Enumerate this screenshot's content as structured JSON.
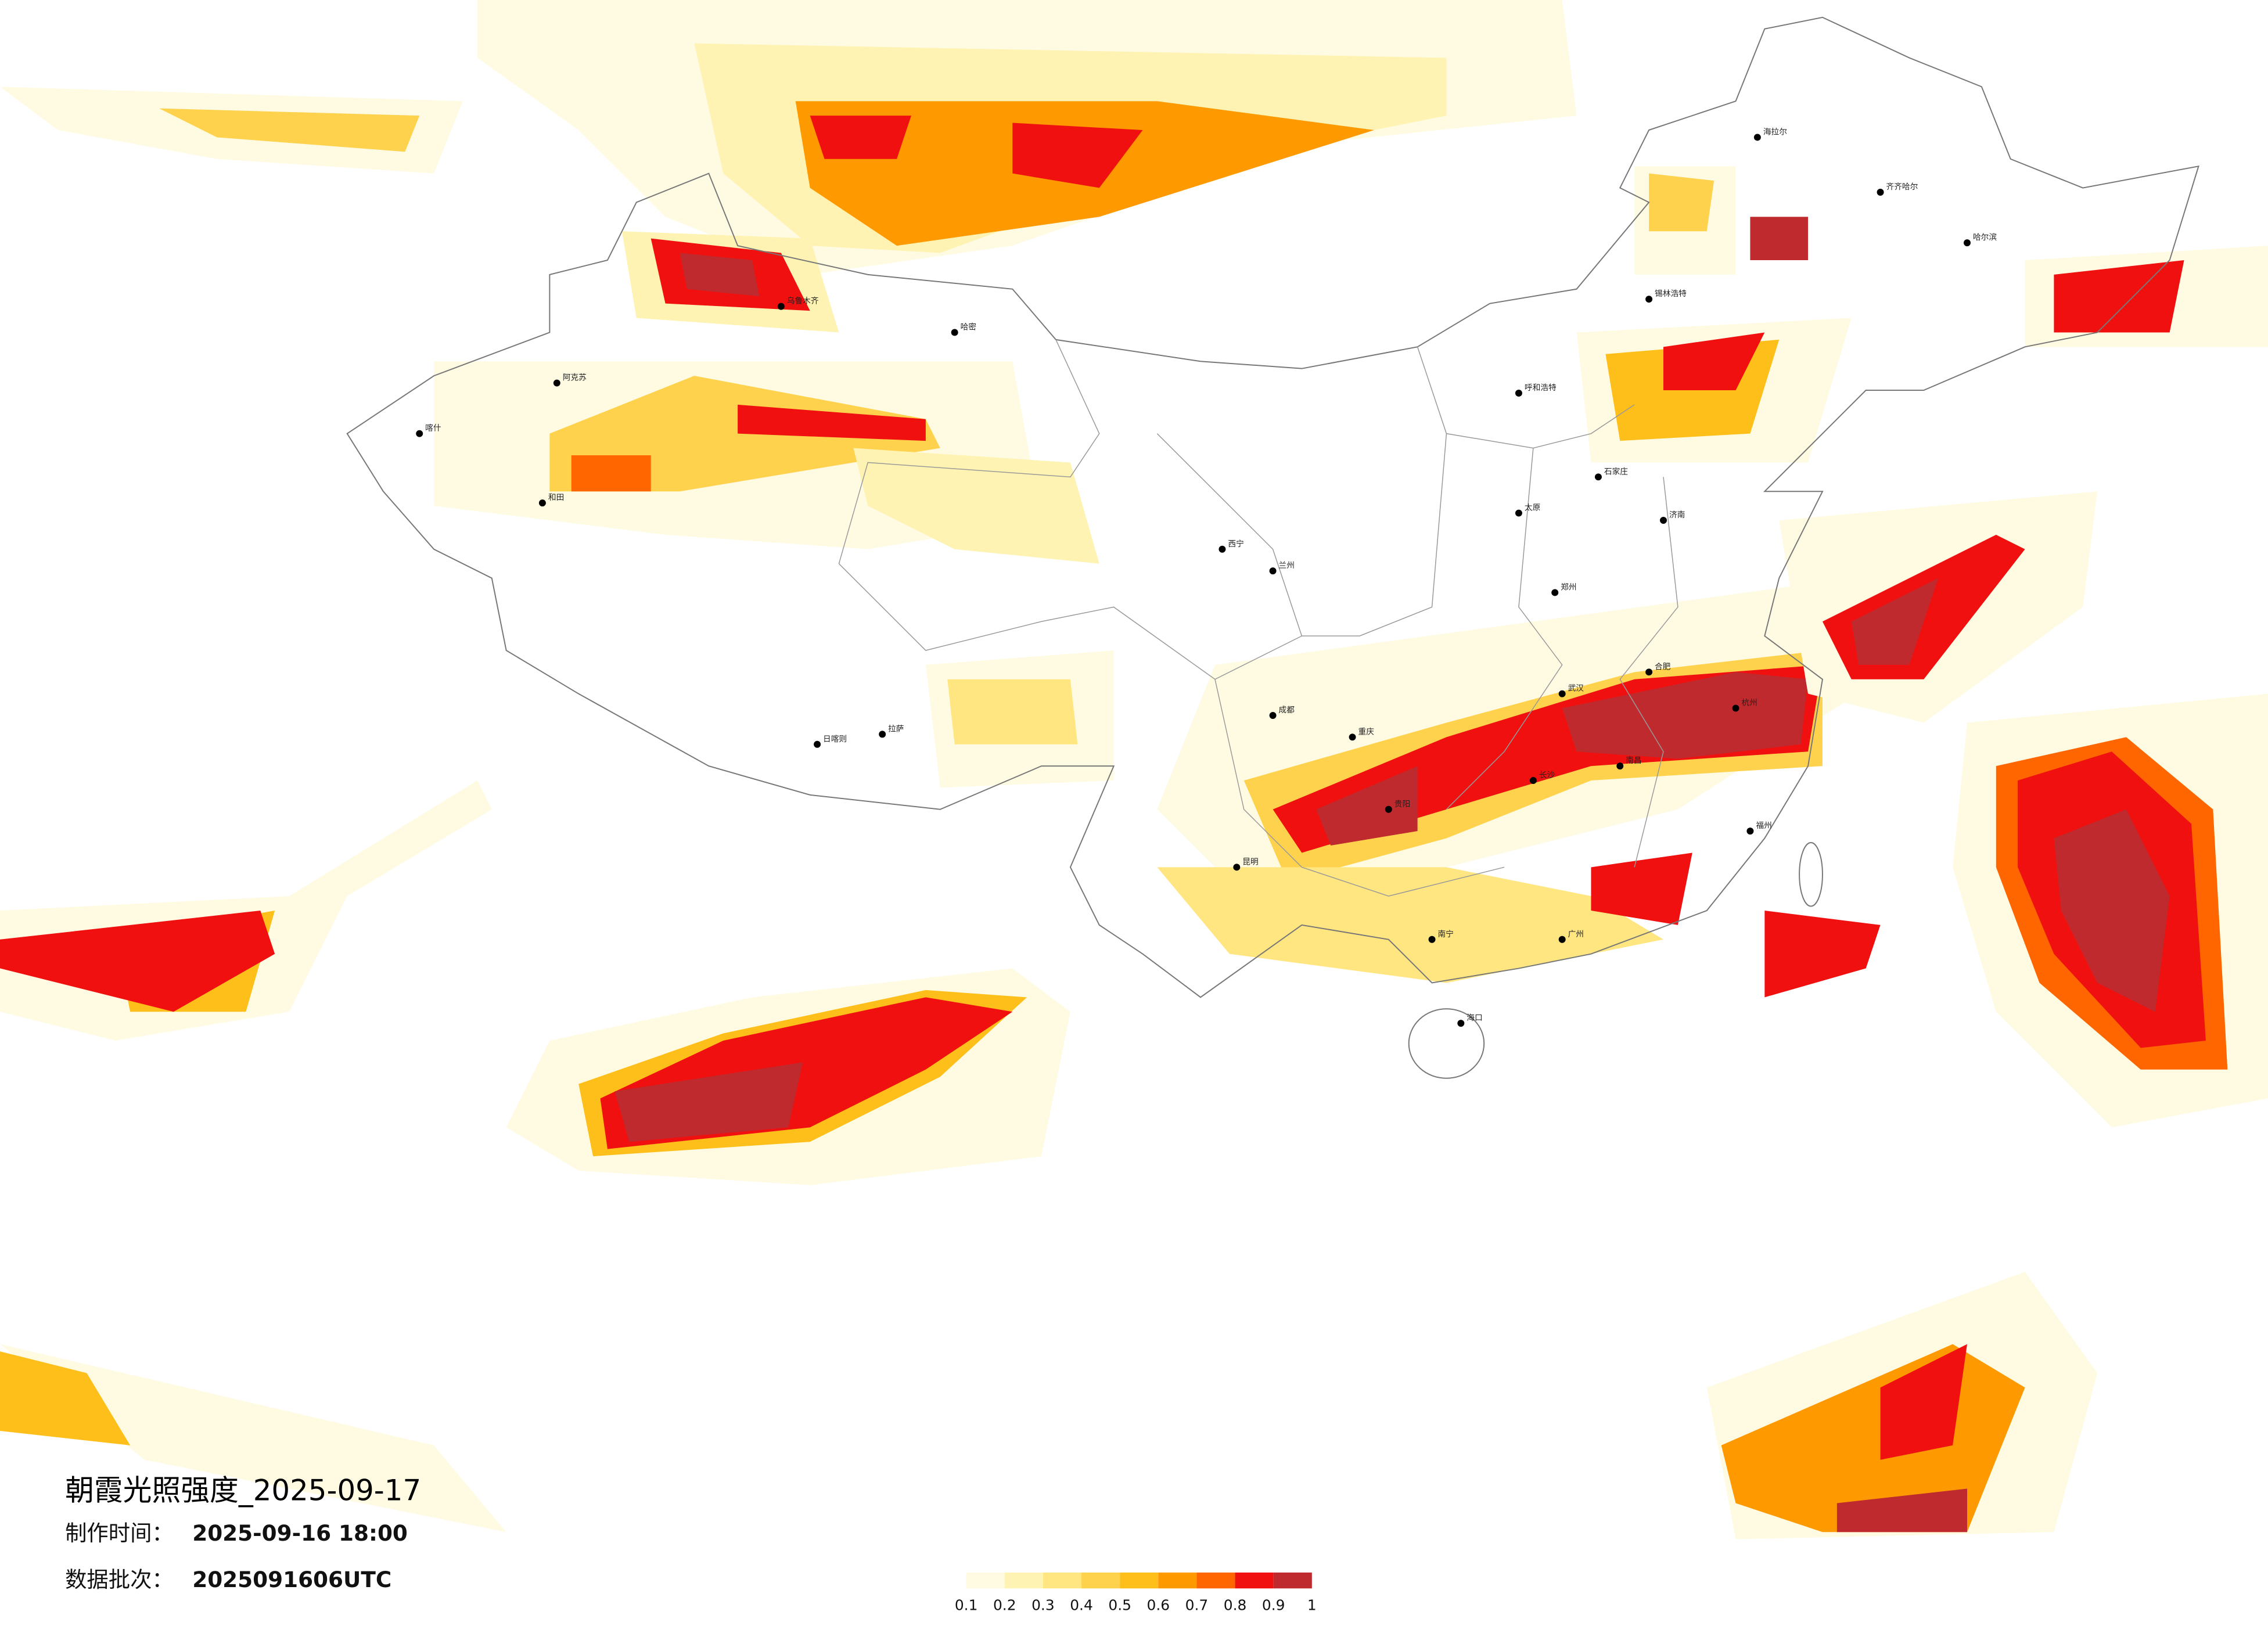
{
  "title": "朝霞光照强度_2025-09-17",
  "production_time": {
    "label": "制作时间：",
    "value": "2025-09-16 18:00"
  },
  "data_batch": {
    "label": "数据批次：",
    "value": "2025091606UTC"
  },
  "colorbar": {
    "colors": [
      "#fffbe3",
      "#fff3b3",
      "#ffe680",
      "#ffd24d",
      "#ffbf1a",
      "#ff9900",
      "#ff6600",
      "#f01010",
      "#bf2a2e"
    ],
    "ticks": [
      0.1,
      0.2,
      0.3,
      0.4,
      0.5,
      0.6,
      0.7,
      0.8,
      0.9,
      1
    ]
  },
  "cities": [
    "哈尔滨",
    "齐齐哈尔",
    "海拉尔",
    "锡林浩特",
    "呼和浩特",
    "乌鲁木齐",
    "哈密",
    "喀什",
    "阿克苏",
    "和田",
    "拉萨",
    "日喀则",
    "西宁",
    "兰州",
    "成都",
    "重庆",
    "昆明",
    "贵阳",
    "南宁",
    "广州",
    "海口",
    "武汉",
    "长沙",
    "南昌",
    "石家庄",
    "太原",
    "济南",
    "郑州",
    "合肥",
    "福州",
    "杭州"
  ]
}
